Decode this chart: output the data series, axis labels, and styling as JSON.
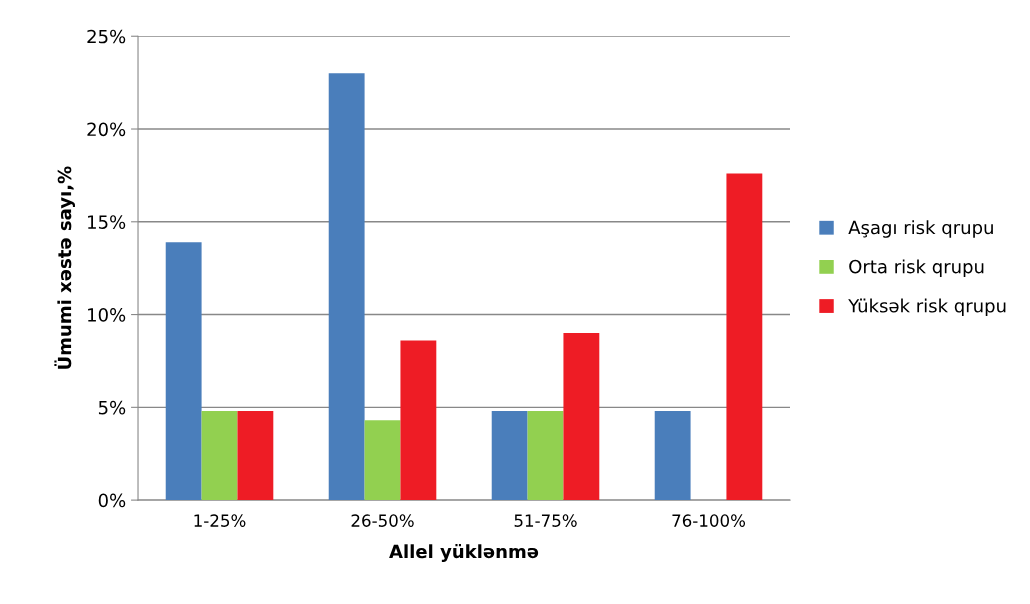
{
  "chart_data": {
    "type": "bar",
    "xlabel": "Allel yüklənmə",
    "ylabel": "Ümumi xəstə sayı,%",
    "categories": [
      "1-25%",
      "26-50%",
      "51-75%",
      "76-100%"
    ],
    "series": [
      {
        "name": "Aşagı risk qrupu",
        "color": "#4a7ebb",
        "values": [
          13.9,
          23.0,
          4.8,
          4.8
        ]
      },
      {
        "name": "Orta risk qrupu",
        "color": "#92d050",
        "values": [
          4.8,
          4.3,
          4.8,
          0
        ]
      },
      {
        "name": "Yüksək risk qrupu",
        "color": "#ee1c25",
        "values": [
          4.8,
          8.6,
          9.0,
          17.6
        ]
      }
    ],
    "ylim": [
      0,
      25
    ],
    "yticks": [
      {
        "value": 0,
        "label": "0%"
      },
      {
        "value": 5,
        "label": "5%"
      },
      {
        "value": 10,
        "label": "10%"
      },
      {
        "value": 15,
        "label": "15%"
      },
      {
        "value": 20,
        "label": "20%"
      },
      {
        "value": 25,
        "label": "25%"
      }
    ],
    "grid": "y",
    "legend": "right"
  }
}
